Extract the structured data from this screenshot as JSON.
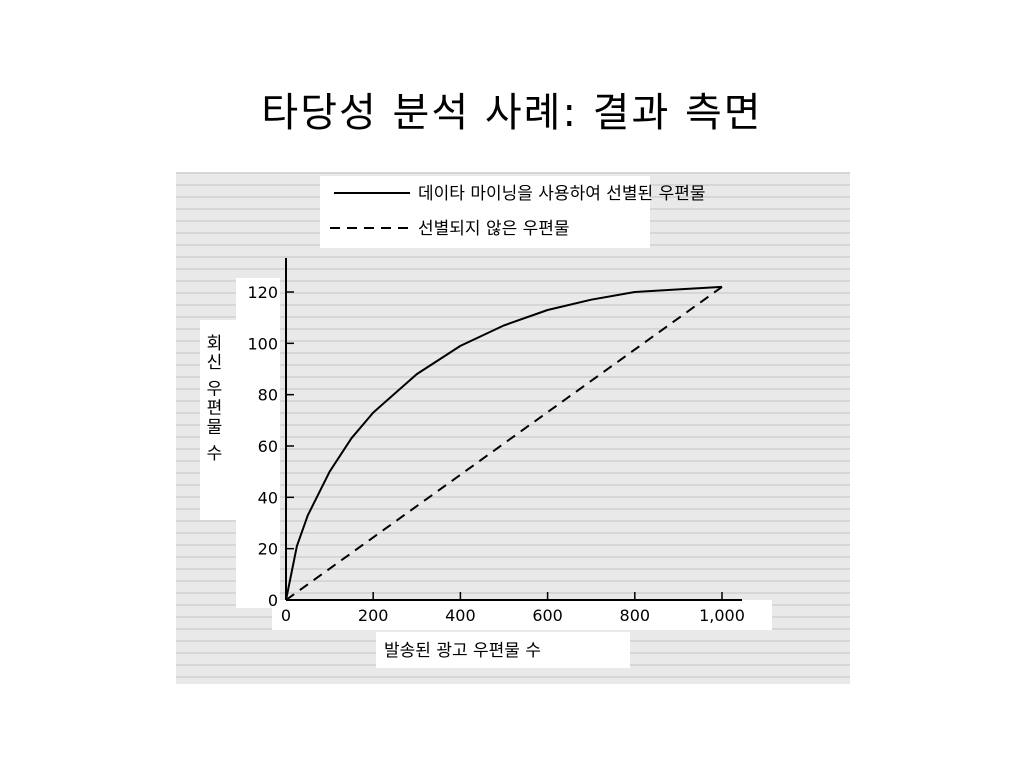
{
  "slide": {
    "title": "타당성 분석 사례: 결과 측면"
  },
  "chart_data": {
    "type": "line",
    "xlabel": "발송된 광고 우편물 수",
    "ylabel": "회신 우편물 수",
    "xlim": [
      0,
      1000
    ],
    "ylim": [
      0,
      120
    ],
    "x_ticks": [
      {
        "value": 0,
        "label": "0"
      },
      {
        "value": 200,
        "label": "200"
      },
      {
        "value": 400,
        "label": "400"
      },
      {
        "value": 600,
        "label": "600"
      },
      {
        "value": 800,
        "label": "800"
      },
      {
        "value": 1000,
        "label": "1,000"
      }
    ],
    "y_ticks": [
      {
        "value": 0,
        "label": "0"
      },
      {
        "value": 20,
        "label": "20"
      },
      {
        "value": 40,
        "label": "40"
      },
      {
        "value": 60,
        "label": "60"
      },
      {
        "value": 80,
        "label": "80"
      },
      {
        "value": 100,
        "label": "100"
      },
      {
        "value": 120,
        "label": "120"
      }
    ],
    "legend_position": "top",
    "series": [
      {
        "name": "데이타 마이닝을 사용하여 선별된 우편물",
        "style": "solid",
        "x": [
          0,
          25,
          50,
          100,
          150,
          200,
          300,
          400,
          500,
          600,
          700,
          800,
          900,
          1000
        ],
        "y": [
          0,
          21,
          33,
          50,
          63,
          73,
          88,
          99,
          107,
          113,
          117,
          120,
          121,
          122
        ]
      },
      {
        "name": "선별되지 않은 우편물",
        "style": "dashed",
        "x": [
          0,
          1000
        ],
        "y": [
          0,
          122
        ]
      }
    ],
    "colors": {
      "line": "#000000",
      "background": "#e6e6e6"
    }
  }
}
